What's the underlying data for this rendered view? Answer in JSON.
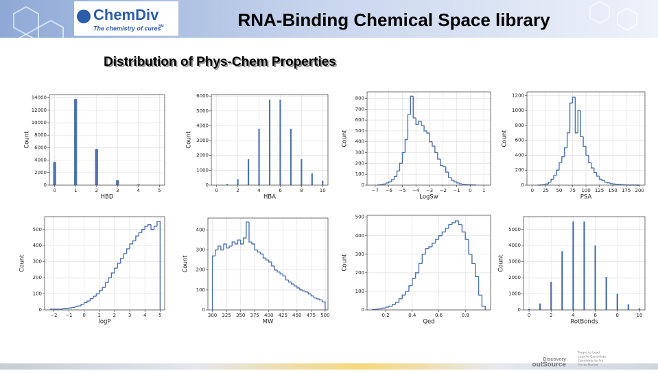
{
  "header": {
    "logo": "ChemDiv",
    "tagline": "The chemistry of cures",
    "tagline_mark": "SM",
    "title": "RNA-Binding Chemical Space library",
    "subtitle": "Distribution of Phys-Chem Properties"
  },
  "footer": {
    "brand": [
      "Discovery",
      "outSource"
    ],
    "tagline": [
      "Target to Lead",
      "Lead to Candidate",
      "Candidate to Pre",
      "Pre to Market"
    ]
  },
  "chart_data": [
    {
      "type": "bar",
      "xlabel": "HBD",
      "ylabel": "Count",
      "color": "#4c72b0",
      "grid": true,
      "x": [
        0,
        1,
        2,
        3,
        4,
        5
      ],
      "values": [
        3700,
        13800,
        5800,
        800,
        100,
        20
      ],
      "xlim": [
        -0.25,
        5.25
      ],
      "xticks": [
        0,
        1,
        2,
        3,
        4,
        5
      ],
      "ylim": [
        0,
        14500
      ],
      "yticks": [
        0,
        2000,
        4000,
        6000,
        8000,
        10000,
        12000,
        14000
      ]
    },
    {
      "type": "bar",
      "xlabel": "HBA",
      "ylabel": "Count",
      "color": "#4c72b0",
      "grid": true,
      "x": [
        0,
        1,
        2,
        3,
        4,
        5,
        6,
        7,
        8,
        9,
        10
      ],
      "values": [
        10,
        80,
        400,
        1750,
        3800,
        5750,
        5750,
        3800,
        1750,
        800,
        300
      ],
      "xlim": [
        -0.5,
        10.5
      ],
      "xticks": [
        0,
        2,
        4,
        6,
        8,
        10
      ],
      "ylim": [
        0,
        6100
      ],
      "yticks": [
        0,
        1000,
        2000,
        3000,
        4000,
        5000,
        6000
      ]
    },
    {
      "type": "histogram",
      "xlabel": "LogSw",
      "ylabel": "Count",
      "color": "#4c72b0",
      "grid": true,
      "bins": [
        -6.8,
        -6.6,
        -6.4,
        -6.2,
        -6,
        -5.8,
        -5.6,
        -5.4,
        -5.2,
        -5,
        -4.8,
        -4.6,
        -4.4,
        -4.2,
        -4,
        -3.8,
        -3.6,
        -3.4,
        -3.2,
        -3,
        -2.8,
        -2.6,
        -2.4,
        -2.2,
        -2,
        -1.8,
        -1.6,
        -1.4,
        -1.2,
        -1,
        -0.8,
        -0.6,
        -0.4,
        -0.2,
        0,
        0.2,
        0.4
      ],
      "values": [
        2,
        5,
        10,
        20,
        30,
        50,
        80,
        130,
        200,
        300,
        420,
        650,
        820,
        620,
        560,
        590,
        550,
        500,
        480,
        400,
        360,
        300,
        240,
        180,
        170,
        120,
        70,
        45,
        30,
        20,
        12,
        8,
        5,
        3,
        2,
        1
      ],
      "xlim": [
        -7.6,
        1.5
      ],
      "xticks": [
        {
          "value": -7,
          "label": "−7"
        },
        {
          "value": -6,
          "label": "−6"
        },
        {
          "value": -5,
          "label": "−5"
        },
        {
          "value": -4,
          "label": "−4"
        },
        {
          "value": -3,
          "label": "−3"
        },
        {
          "value": -2,
          "label": "−2"
        },
        {
          "value": -1,
          "label": "−1"
        },
        0,
        1
      ],
      "ylim": [
        0,
        860
      ],
      "yticks": [
        0,
        100,
        200,
        300,
        400,
        500,
        600,
        700,
        800
      ]
    },
    {
      "type": "histogram",
      "xlabel": "PSA",
      "ylabel": "Count",
      "color": "#4c72b0",
      "grid": true,
      "bins": [
        10,
        15,
        20,
        25,
        30,
        35,
        40,
        45,
        50,
        55,
        60,
        65,
        70,
        75,
        80,
        85,
        90,
        95,
        100,
        105,
        110,
        115,
        120,
        125,
        130,
        135,
        140,
        145,
        150,
        155,
        160,
        165,
        170,
        175,
        180,
        185,
        190,
        195,
        200
      ],
      "values": [
        0,
        2,
        5,
        15,
        40,
        80,
        130,
        200,
        300,
        380,
        500,
        700,
        1100,
        1180,
        700,
        1000,
        650,
        520,
        400,
        300,
        230,
        170,
        120,
        80,
        60,
        40,
        30,
        20,
        15,
        10,
        8,
        5,
        3,
        2,
        1,
        1,
        1,
        0
      ],
      "xlim": [
        -10,
        210
      ],
      "xticks": [
        0,
        25,
        50,
        75,
        100,
        125,
        150,
        175,
        200
      ],
      "ylim": [
        0,
        1250
      ],
      "yticks": [
        0,
        200,
        400,
        600,
        800,
        1000,
        1200
      ]
    },
    {
      "type": "histogram",
      "xlabel": "logP",
      "ylabel": "Count",
      "color": "#4c72b0",
      "grid": true,
      "bins": [
        -2.2,
        -2,
        -1.8,
        -1.6,
        -1.4,
        -1.2,
        -1,
        -0.8,
        -0.6,
        -0.4,
        -0.2,
        0,
        0.2,
        0.4,
        0.6,
        0.8,
        1,
        1.2,
        1.4,
        1.6,
        1.8,
        2,
        2.2,
        2.4,
        2.6,
        2.8,
        3,
        3.2,
        3.4,
        3.6,
        3.8,
        4,
        4.2,
        4.4,
        4.6,
        4.8,
        5
      ],
      "values": [
        5,
        5,
        5,
        5,
        8,
        10,
        12,
        15,
        20,
        25,
        35,
        45,
        55,
        70,
        85,
        100,
        120,
        140,
        170,
        200,
        230,
        260,
        290,
        320,
        350,
        380,
        410,
        430,
        460,
        480,
        500,
        520,
        530,
        500,
        520,
        550
      ],
      "xlim": [
        -2.6,
        5.3
      ],
      "xticks": [
        {
          "value": -2,
          "label": "−2"
        },
        {
          "value": -1,
          "label": "−1"
        },
        0,
        1,
        2,
        3,
        4,
        5
      ],
      "ylim": [
        0,
        580
      ],
      "yticks": [
        0,
        100,
        200,
        300,
        400,
        500
      ]
    },
    {
      "type": "histogram",
      "xlabel": "MW",
      "ylabel": "Count",
      "color": "#4c72b0",
      "grid": true,
      "bins": [
        300,
        305,
        310,
        315,
        320,
        325,
        330,
        335,
        340,
        345,
        350,
        355,
        360,
        365,
        370,
        375,
        380,
        385,
        390,
        395,
        400,
        405,
        410,
        415,
        420,
        425,
        430,
        435,
        440,
        445,
        450,
        455,
        460,
        465,
        470,
        475,
        480,
        485,
        490,
        495,
        500
      ],
      "values": [
        270,
        300,
        320,
        300,
        330,
        310,
        320,
        340,
        330,
        350,
        330,
        360,
        440,
        340,
        330,
        300,
        290,
        280,
        260,
        250,
        240,
        220,
        200,
        190,
        180,
        170,
        150,
        140,
        130,
        120,
        110,
        100,
        95,
        90,
        80,
        70,
        60,
        55,
        50,
        40
      ],
      "xlim": [
        292,
        505
      ],
      "xticks": [
        300,
        325,
        350,
        375,
        400,
        425,
        450,
        475,
        500
      ],
      "ylim": [
        0,
        460
      ],
      "yticks": [
        0,
        100,
        200,
        300,
        400
      ]
    },
    {
      "type": "histogram",
      "xlabel": "Qed",
      "ylabel": "Count",
      "color": "#4c72b0",
      "grid": true,
      "bins": [
        0.1,
        0.125,
        0.15,
        0.175,
        0.2,
        0.225,
        0.25,
        0.275,
        0.3,
        0.325,
        0.35,
        0.375,
        0.4,
        0.425,
        0.45,
        0.475,
        0.5,
        0.525,
        0.55,
        0.575,
        0.6,
        0.625,
        0.65,
        0.675,
        0.7,
        0.725,
        0.75,
        0.775,
        0.8,
        0.825,
        0.85,
        0.875,
        0.9,
        0.925,
        0.95
      ],
      "values": [
        2,
        4,
        6,
        10,
        15,
        20,
        30,
        40,
        60,
        80,
        100,
        130,
        170,
        200,
        250,
        300,
        330,
        340,
        360,
        380,
        400,
        420,
        440,
        460,
        470,
        480,
        460,
        420,
        380,
        300,
        250,
        180,
        80,
        20
      ],
      "xlim": [
        0.06,
        0.99
      ],
      "xticks": [
        0.2,
        0.4,
        0.6,
        0.8
      ],
      "ylim": [
        0,
        510
      ],
      "yticks": [
        0,
        100,
        200,
        300,
        400,
        500
      ]
    },
    {
      "type": "bar",
      "xlabel": "RotBonds",
      "ylabel": "Count",
      "color": "#4c72b0",
      "grid": true,
      "x": [
        0,
        1,
        2,
        3,
        4,
        5,
        6,
        7,
        8,
        9,
        10
      ],
      "values": [
        50,
        400,
        1750,
        3650,
        5500,
        5500,
        4000,
        2050,
        1000,
        350,
        100
      ],
      "xlim": [
        -0.5,
        10.5
      ],
      "xticks": [
        0,
        2,
        4,
        6,
        8,
        10
      ],
      "ylim": [
        0,
        5800
      ],
      "yticks": [
        0,
        1000,
        2000,
        3000,
        4000,
        5000
      ]
    }
  ]
}
